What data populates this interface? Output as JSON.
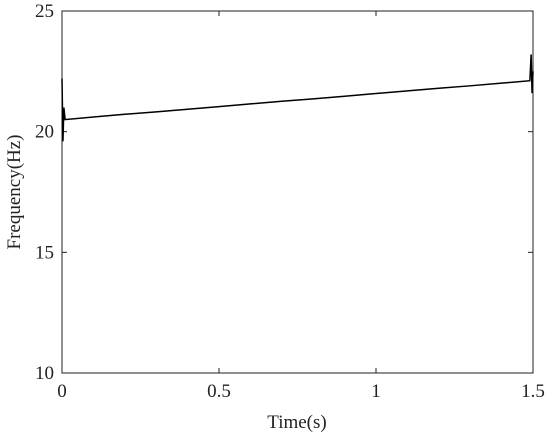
{
  "chart_data": {
    "type": "line",
    "x_label": "Time(s)",
    "y_label": "Frequency(Hz)",
    "x": [
      0,
      0.003,
      0.006,
      0.01,
      0.1,
      0.2,
      0.3,
      0.4,
      0.5,
      0.6,
      0.7,
      0.8,
      0.9,
      1.0,
      1.1,
      1.2,
      1.3,
      1.4,
      1.49,
      1.494,
      1.497,
      1.5
    ],
    "series": [
      {
        "color": "#000000",
        "values": [
          22.2,
          19.6,
          21.0,
          20.5,
          20.61,
          20.72,
          20.82,
          20.93,
          21.04,
          21.15,
          21.26,
          21.36,
          21.47,
          21.58,
          21.69,
          21.8,
          21.9,
          22.01,
          22.11,
          23.2,
          21.6,
          22.5
        ]
      }
    ],
    "xlim": [
      0,
      1.5
    ],
    "ylim": [
      10,
      25
    ],
    "xticks": [
      0,
      0.5,
      1,
      1.5
    ],
    "yticks": [
      10,
      15,
      20,
      25
    ],
    "grid": false
  }
}
